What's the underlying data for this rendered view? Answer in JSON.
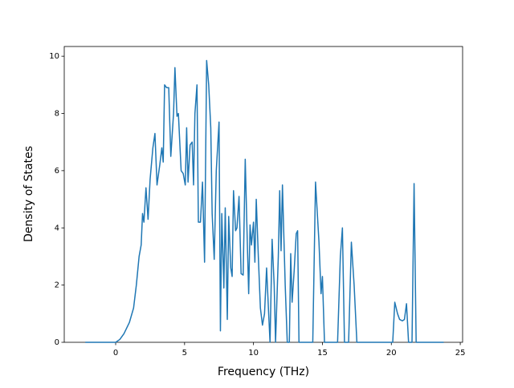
{
  "chart_data": {
    "type": "line",
    "xlabel": "Frequency (THz)",
    "ylabel": "Density of States",
    "xlim": [
      -3.73,
      25.17
    ],
    "ylim": [
      0,
      10.34
    ],
    "xticks": [
      0,
      5,
      10,
      15,
      20,
      25
    ],
    "yticks": [
      0,
      2,
      4,
      6,
      8,
      10
    ],
    "x": [
      -2.2,
      -1,
      0,
      0.3,
      0.6,
      1.0,
      1.3,
      1.5,
      1.7,
      1.85,
      1.95,
      2.05,
      2.2,
      2.35,
      2.5,
      2.7,
      2.85,
      3.0,
      3.2,
      3.35,
      3.45,
      3.55,
      3.7,
      3.85,
      4.0,
      4.2,
      4.3,
      4.45,
      4.55,
      4.75,
      4.9,
      5.05,
      5.15,
      5.25,
      5.4,
      5.55,
      5.65,
      5.75,
      5.9,
      6.0,
      6.15,
      6.3,
      6.45,
      6.6,
      6.75,
      6.9,
      7.0,
      7.15,
      7.3,
      7.5,
      7.6,
      7.7,
      7.85,
      7.95,
      8.1,
      8.2,
      8.35,
      8.45,
      8.55,
      8.7,
      8.8,
      8.95,
      9.1,
      9.25,
      9.4,
      9.55,
      9.65,
      9.75,
      9.85,
      10.0,
      10.1,
      10.2,
      10.35,
      10.5,
      10.65,
      10.8,
      10.95,
      11.1,
      11.2,
      11.35,
      11.5,
      11.6,
      11.8,
      11.9,
      12.0,
      12.1,
      12.3,
      12.45,
      12.6,
      12.7,
      12.8,
      12.95,
      13.1,
      13.2,
      13.3,
      14.3,
      14.5,
      14.75,
      14.9,
      15.0,
      15.15,
      16.1,
      16.3,
      16.45,
      16.6,
      16.9,
      17.1,
      17.3,
      17.5,
      20.1,
      20.25,
      20.45,
      20.6,
      20.8,
      20.95,
      21.1,
      21.25,
      21.5,
      21.65,
      21.8,
      23.8
    ],
    "series": [
      {
        "color": "#1f77b4",
        "values": [
          0,
          0,
          0,
          0.1,
          0.3,
          0.7,
          1.2,
          2.0,
          3.0,
          3.4,
          4.5,
          4.2,
          5.4,
          4.3,
          5.7,
          6.8,
          7.3,
          5.5,
          6.2,
          6.8,
          6.3,
          9.0,
          8.9,
          8.9,
          6.5,
          8.0,
          9.6,
          7.9,
          8.0,
          6.0,
          5.9,
          5.5,
          7.5,
          5.6,
          6.9,
          7.0,
          5.5,
          8.0,
          9.0,
          4.2,
          4.2,
          5.6,
          2.8,
          9.85,
          9.0,
          7.5,
          4.5,
          2.9,
          6.0,
          7.7,
          0.4,
          4.5,
          1.9,
          4.7,
          0.8,
          4.4,
          2.6,
          2.3,
          5.3,
          3.9,
          4.0,
          5.1,
          2.4,
          2.35,
          6.4,
          3.5,
          1.7,
          4.1,
          3.4,
          4.2,
          2.8,
          5.0,
          3.0,
          1.2,
          0.6,
          1.0,
          2.6,
          1.0,
          0,
          3.6,
          2.0,
          0,
          3.0,
          5.3,
          3.2,
          5.5,
          2.0,
          0,
          0,
          3.1,
          1.4,
          2.5,
          3.8,
          3.9,
          0,
          0,
          5.6,
          3.5,
          1.7,
          2.3,
          0,
          0,
          3.0,
          4.0,
          0,
          0,
          3.5,
          2.0,
          0,
          0,
          1.4,
          1.0,
          0.8,
          0.75,
          0.8,
          1.35,
          0,
          0,
          5.55,
          0,
          0
        ]
      }
    ]
  }
}
